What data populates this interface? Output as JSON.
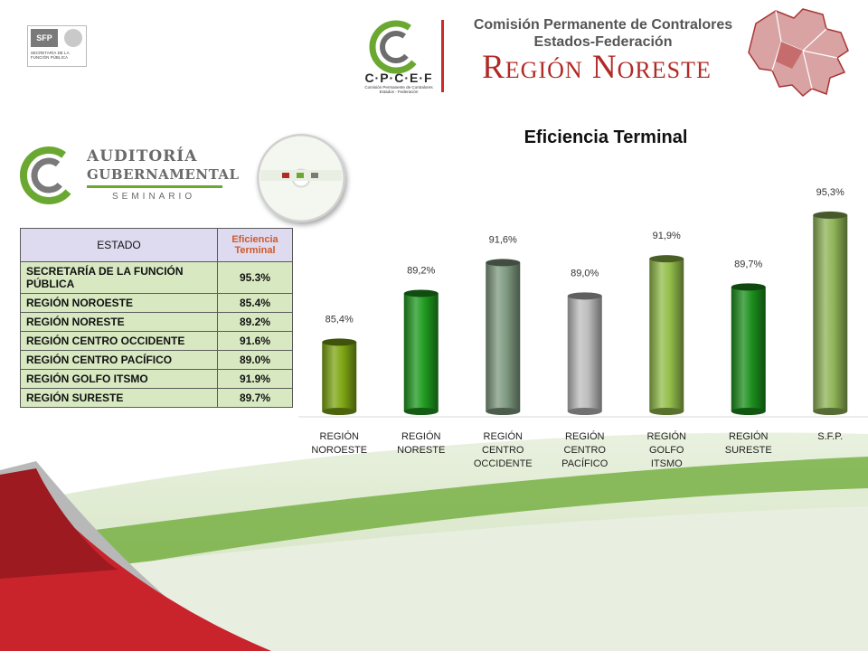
{
  "sfp_logo": {
    "mark": "SFP",
    "text": "SECRETARÍA DE LA FUNCIÓN PÚBLICA"
  },
  "cpcef": {
    "logo_text": "C·P·C·E·F",
    "logo_sub": "Comisión Permanente de Contralores Estados - Federación",
    "header_line1": "Comisión Permanente de Contralores",
    "header_line2": "Estados-Federación",
    "region_title": "Región Noreste"
  },
  "auditoria_logo": {
    "line1": "AUDITORÍA",
    "line2": "GUBERNAMENTAL",
    "line3": "SEMINARIO"
  },
  "table": {
    "headers": [
      "ESTADO",
      "Eficiencia Terminal"
    ],
    "rows": [
      {
        "estado": "SECRETARÍA DE LA FUNCIÓN PÚBLICA",
        "valor": "95.3%"
      },
      {
        "estado": "REGIÓN NOROESTE",
        "valor": "85.4%"
      },
      {
        "estado": "REGIÓN NORESTE",
        "valor": "89.2%"
      },
      {
        "estado": "REGIÓN CENTRO OCCIDENTE",
        "valor": "91.6%"
      },
      {
        "estado": "REGIÓN CENTRO PACÍFICO",
        "valor": "89.0%"
      },
      {
        "estado": "REGIÓN GOLFO ITSMO",
        "valor": "91.9%"
      },
      {
        "estado": "REGIÓN SURESTE",
        "valor": "89.7%"
      }
    ]
  },
  "colors": {
    "accent_red": "#b12a25",
    "accent_green": "#6aa832",
    "table_row": "#d8e9c2",
    "table_header": "#dedaf0"
  },
  "chart_data": {
    "type": "bar",
    "title": "Eficiencia Terminal",
    "categories": [
      "REGIÓN NOROESTE",
      "REGIÓN NORESTE",
      "REGIÓN CENTRO OCCIDENTE",
      "REGIÓN CENTRO PACÍFICO",
      "REGIÓN GOLFO ITSMO",
      "REGIÓN SURESTE",
      "S.F.P."
    ],
    "values": [
      85.4,
      89.2,
      91.6,
      89.0,
      91.9,
      89.7,
      95.3
    ],
    "data_labels": [
      "85,4%",
      "89,2%",
      "91,6%",
      "89,0%",
      "91,9%",
      "89,7%",
      "95,3%"
    ],
    "bar_colors": [
      "#7ea614",
      "#1f9a1f",
      "#7f9a80",
      "#bdbdbd",
      "#93bd4a",
      "#1c8f1c",
      "#8fb457"
    ],
    "bar_style": "cylinder",
    "ylim": [
      80,
      96
    ],
    "grid": false,
    "legend": "none"
  }
}
